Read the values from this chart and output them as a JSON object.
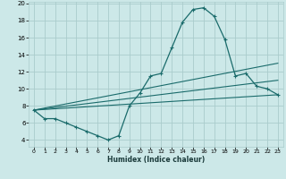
{
  "xlabel": "Humidex (Indice chaleur)",
  "bg_color": "#cce8e8",
  "grid_color": "#aacccc",
  "line_color": "#1a6b6b",
  "xlim": [
    -0.5,
    23.5
  ],
  "ylim": [
    3.2,
    20.2
  ],
  "xticks": [
    0,
    1,
    2,
    3,
    4,
    5,
    6,
    7,
    8,
    9,
    10,
    11,
    12,
    13,
    14,
    15,
    16,
    17,
    18,
    19,
    20,
    21,
    22,
    23
  ],
  "yticks": [
    4,
    6,
    8,
    10,
    12,
    14,
    16,
    18,
    20
  ],
  "curve1_x": [
    0,
    1,
    2,
    3,
    4,
    5,
    6,
    7,
    8,
    9,
    10,
    11,
    12,
    13,
    14,
    15,
    16,
    17,
    18,
    19,
    20,
    21,
    22,
    23
  ],
  "curve1_y": [
    7.5,
    6.5,
    6.5,
    6.0,
    5.5,
    5.0,
    4.5,
    4.0,
    4.5,
    8.0,
    9.5,
    11.5,
    11.8,
    14.8,
    17.8,
    19.3,
    19.5,
    18.5,
    15.8,
    11.5,
    11.8,
    10.3,
    10.0,
    9.3
  ],
  "line1_x": [
    0,
    23
  ],
  "line1_y": [
    7.5,
    9.3
  ],
  "line2_x": [
    0,
    23
  ],
  "line2_y": [
    7.5,
    11.0
  ],
  "line3_x": [
    0,
    23
  ],
  "line3_y": [
    7.5,
    13.0
  ]
}
